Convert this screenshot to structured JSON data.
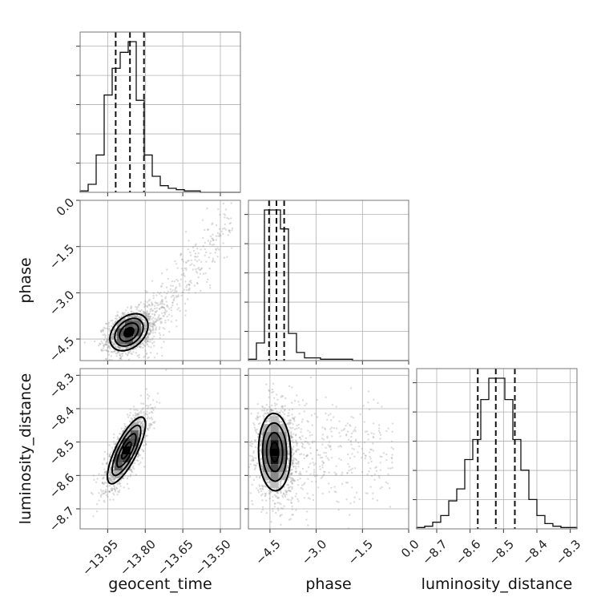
{
  "chart_data": {
    "type": "corner",
    "parameters": [
      {
        "label": "geocent_time",
        "ticks": [
          -13.95,
          -13.8,
          -13.65,
          -13.5
        ],
        "tick_labels": [
          "−13.95",
          "−13.80",
          "−13.65",
          "−13.50"
        ],
        "range": [
          -14.06,
          -13.42
        ]
      },
      {
        "label": "phase",
        "ticks": [
          -4.5,
          -3.0,
          -1.5,
          0.0
        ],
        "tick_labels": [
          "−4.5",
          "−3.0",
          "−1.5",
          "0.0"
        ],
        "range": [
          -5.2,
          0.0
        ]
      },
      {
        "label": "luminosity_distance",
        "ticks": [
          -8.7,
          -8.6,
          -8.5,
          -8.4,
          -8.3
        ],
        "tick_labels": [
          "−8.7",
          "−8.6",
          "−8.5",
          "−8.4",
          "−8.3"
        ],
        "range": [
          -8.76,
          -8.28
        ]
      }
    ],
    "histograms": [
      {
        "edges": [
          -14.06,
          -14.028,
          -13.996,
          -13.964,
          -13.932,
          -13.9,
          -13.868,
          -13.836,
          -13.804,
          -13.772,
          -13.74,
          -13.708,
          -13.676,
          -13.644,
          -13.612,
          -13.58,
          -13.548,
          -13.516,
          -13.484,
          -13.452,
          -13.42
        ],
        "counts": [
          1,
          6,
          28,
          73,
          93,
          105,
          113,
          69,
          28,
          12,
          5,
          3,
          2,
          1,
          1,
          0,
          0,
          0,
          0,
          0
        ],
        "quantiles": [
          -13.918,
          -13.861,
          -13.805
        ]
      },
      {
        "edges": [
          -5.2,
          -4.94,
          -4.68,
          -4.42,
          -4.16,
          -3.9,
          -3.64,
          -3.38,
          -3.12,
          -2.86,
          -2.6,
          -2.34,
          -2.08,
          -1.82,
          -1.56,
          -1.3,
          -1.04,
          -0.78,
          -0.52,
          -0.26,
          0.0
        ],
        "counts": [
          1,
          13,
          111,
          111,
          97,
          20,
          6,
          2,
          2,
          1,
          1,
          1,
          1,
          0,
          0,
          0,
          0,
          0,
          0,
          0
        ],
        "quantiles": [
          -4.53,
          -4.29,
          -4.04
        ]
      },
      {
        "edges": [
          -8.76,
          -8.736,
          -8.712,
          -8.688,
          -8.664,
          -8.64,
          -8.616,
          -8.592,
          -8.568,
          -8.544,
          -8.52,
          -8.496,
          -8.472,
          -8.448,
          -8.424,
          -8.4,
          -8.376,
          -8.352,
          -8.328,
          -8.304,
          -8.28
        ],
        "counts": [
          1,
          2,
          5,
          10,
          21,
          30,
          52,
          67,
          97,
          113,
          113,
          97,
          67,
          44,
          22,
          10,
          4,
          2,
          1,
          1
        ],
        "quantiles": [
          -8.577,
          -8.523,
          -8.466
        ]
      }
    ],
    "joint": [
      {
        "x": 0,
        "y": 1,
        "center": [
          -13.865,
          -4.28
        ],
        "std": [
          0.038,
          0.3
        ],
        "rho": 0.35,
        "tail": {
          "slope_axis": "x",
          "extent": [
            -13.8,
            -13.45
          ],
          "slope": 11.5
        }
      },
      {
        "x": 0,
        "y": 2,
        "center": [
          -13.875,
          -8.525
        ],
        "std": [
          0.038,
          0.05
        ],
        "rho": 0.78
      },
      {
        "x": 1,
        "y": 2,
        "center": [
          -4.35,
          -8.53
        ],
        "std": [
          0.26,
          0.058
        ],
        "rho": -0.05,
        "tail": {
          "slope_axis": "x",
          "extent": [
            -3.9,
            -0.5
          ],
          "slope": 0.0
        }
      }
    ],
    "contour_levels_sigma": [
      0.5,
      1.0,
      1.5,
      2.0
    ],
    "grid": true
  }
}
